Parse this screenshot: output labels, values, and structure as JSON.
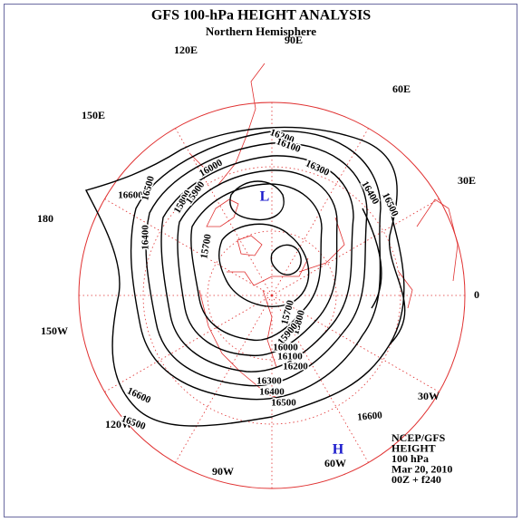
{
  "title": "GFS 100-hPa HEIGHT ANALYSIS",
  "subtitle": "Northern Hemisphere",
  "longitude_labels": [
    "90E",
    "60E",
    "30E",
    "0",
    "30W",
    "60W",
    "90W",
    "120W",
    "150W",
    "180",
    "150E",
    "120E"
  ],
  "contour_labels": [
    "16600",
    "16500",
    "16400",
    "15800",
    "15900",
    "16000",
    "16200",
    "16100",
    "16300",
    "16400",
    "16500",
    "15700",
    "15700",
    "15800",
    "15900",
    "16000",
    "16100",
    "16200",
    "16300",
    "16400",
    "16500",
    "16600",
    "16600",
    "16500"
  ],
  "pressure_systems": [
    "L",
    "H"
  ],
  "info": [
    "NCEP/GFS",
    "HEIGHT",
    "100 hPa",
    "Mar 20, 2010",
    "00Z + f240"
  ]
}
